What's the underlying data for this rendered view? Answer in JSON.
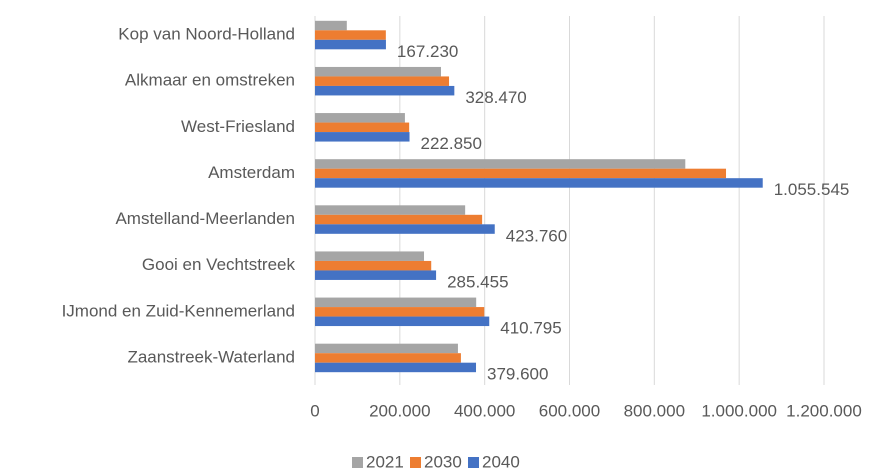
{
  "chart_data": {
    "type": "bar",
    "orientation": "horizontal",
    "categories": [
      "Kop van Noord-Holland",
      "Alkmaar en omstreken",
      "West-Friesland",
      "Amsterdam",
      "Amstelland-Meerlanden",
      "Gooi en Vechtstreek",
      "IJmond en Zuid-Kennemerland",
      "Zaanstreek-Waterland"
    ],
    "series": [
      {
        "name": "2021",
        "color": "#a5a5a5",
        "values": [
          75000,
          297000,
          212000,
          873000,
          354000,
          257000,
          380000,
          337000
        ]
      },
      {
        "name": "2030",
        "color": "#ed7d31",
        "values": [
          167000,
          316000,
          222000,
          969000,
          394000,
          274000,
          399000,
          344000
        ]
      },
      {
        "name": "2040",
        "color": "#4472c4",
        "values": [
          167230,
          328470,
          222850,
          1055545,
          423760,
          285455,
          410795,
          379600
        ],
        "value_labels": [
          "167.230",
          "328.470",
          "222.850",
          "1.055.545",
          "423.760",
          "285.455",
          "410.795",
          "379.600"
        ]
      }
    ],
    "xlim": [
      0,
      1200000
    ],
    "xticks": [
      0,
      {
        "value": 200000,
        "label": "200.000"
      },
      {
        "value": 400000,
        "label": "400.000"
      },
      {
        "value": 600000,
        "label": "600.000"
      },
      {
        "value": 800000,
        "label": "800.000"
      },
      {
        "value": 1000000,
        "label": "1.000.000"
      },
      {
        "value": 1200000,
        "label": "1.200.000"
      }
    ],
    "grid": true,
    "legend": "bottom"
  }
}
